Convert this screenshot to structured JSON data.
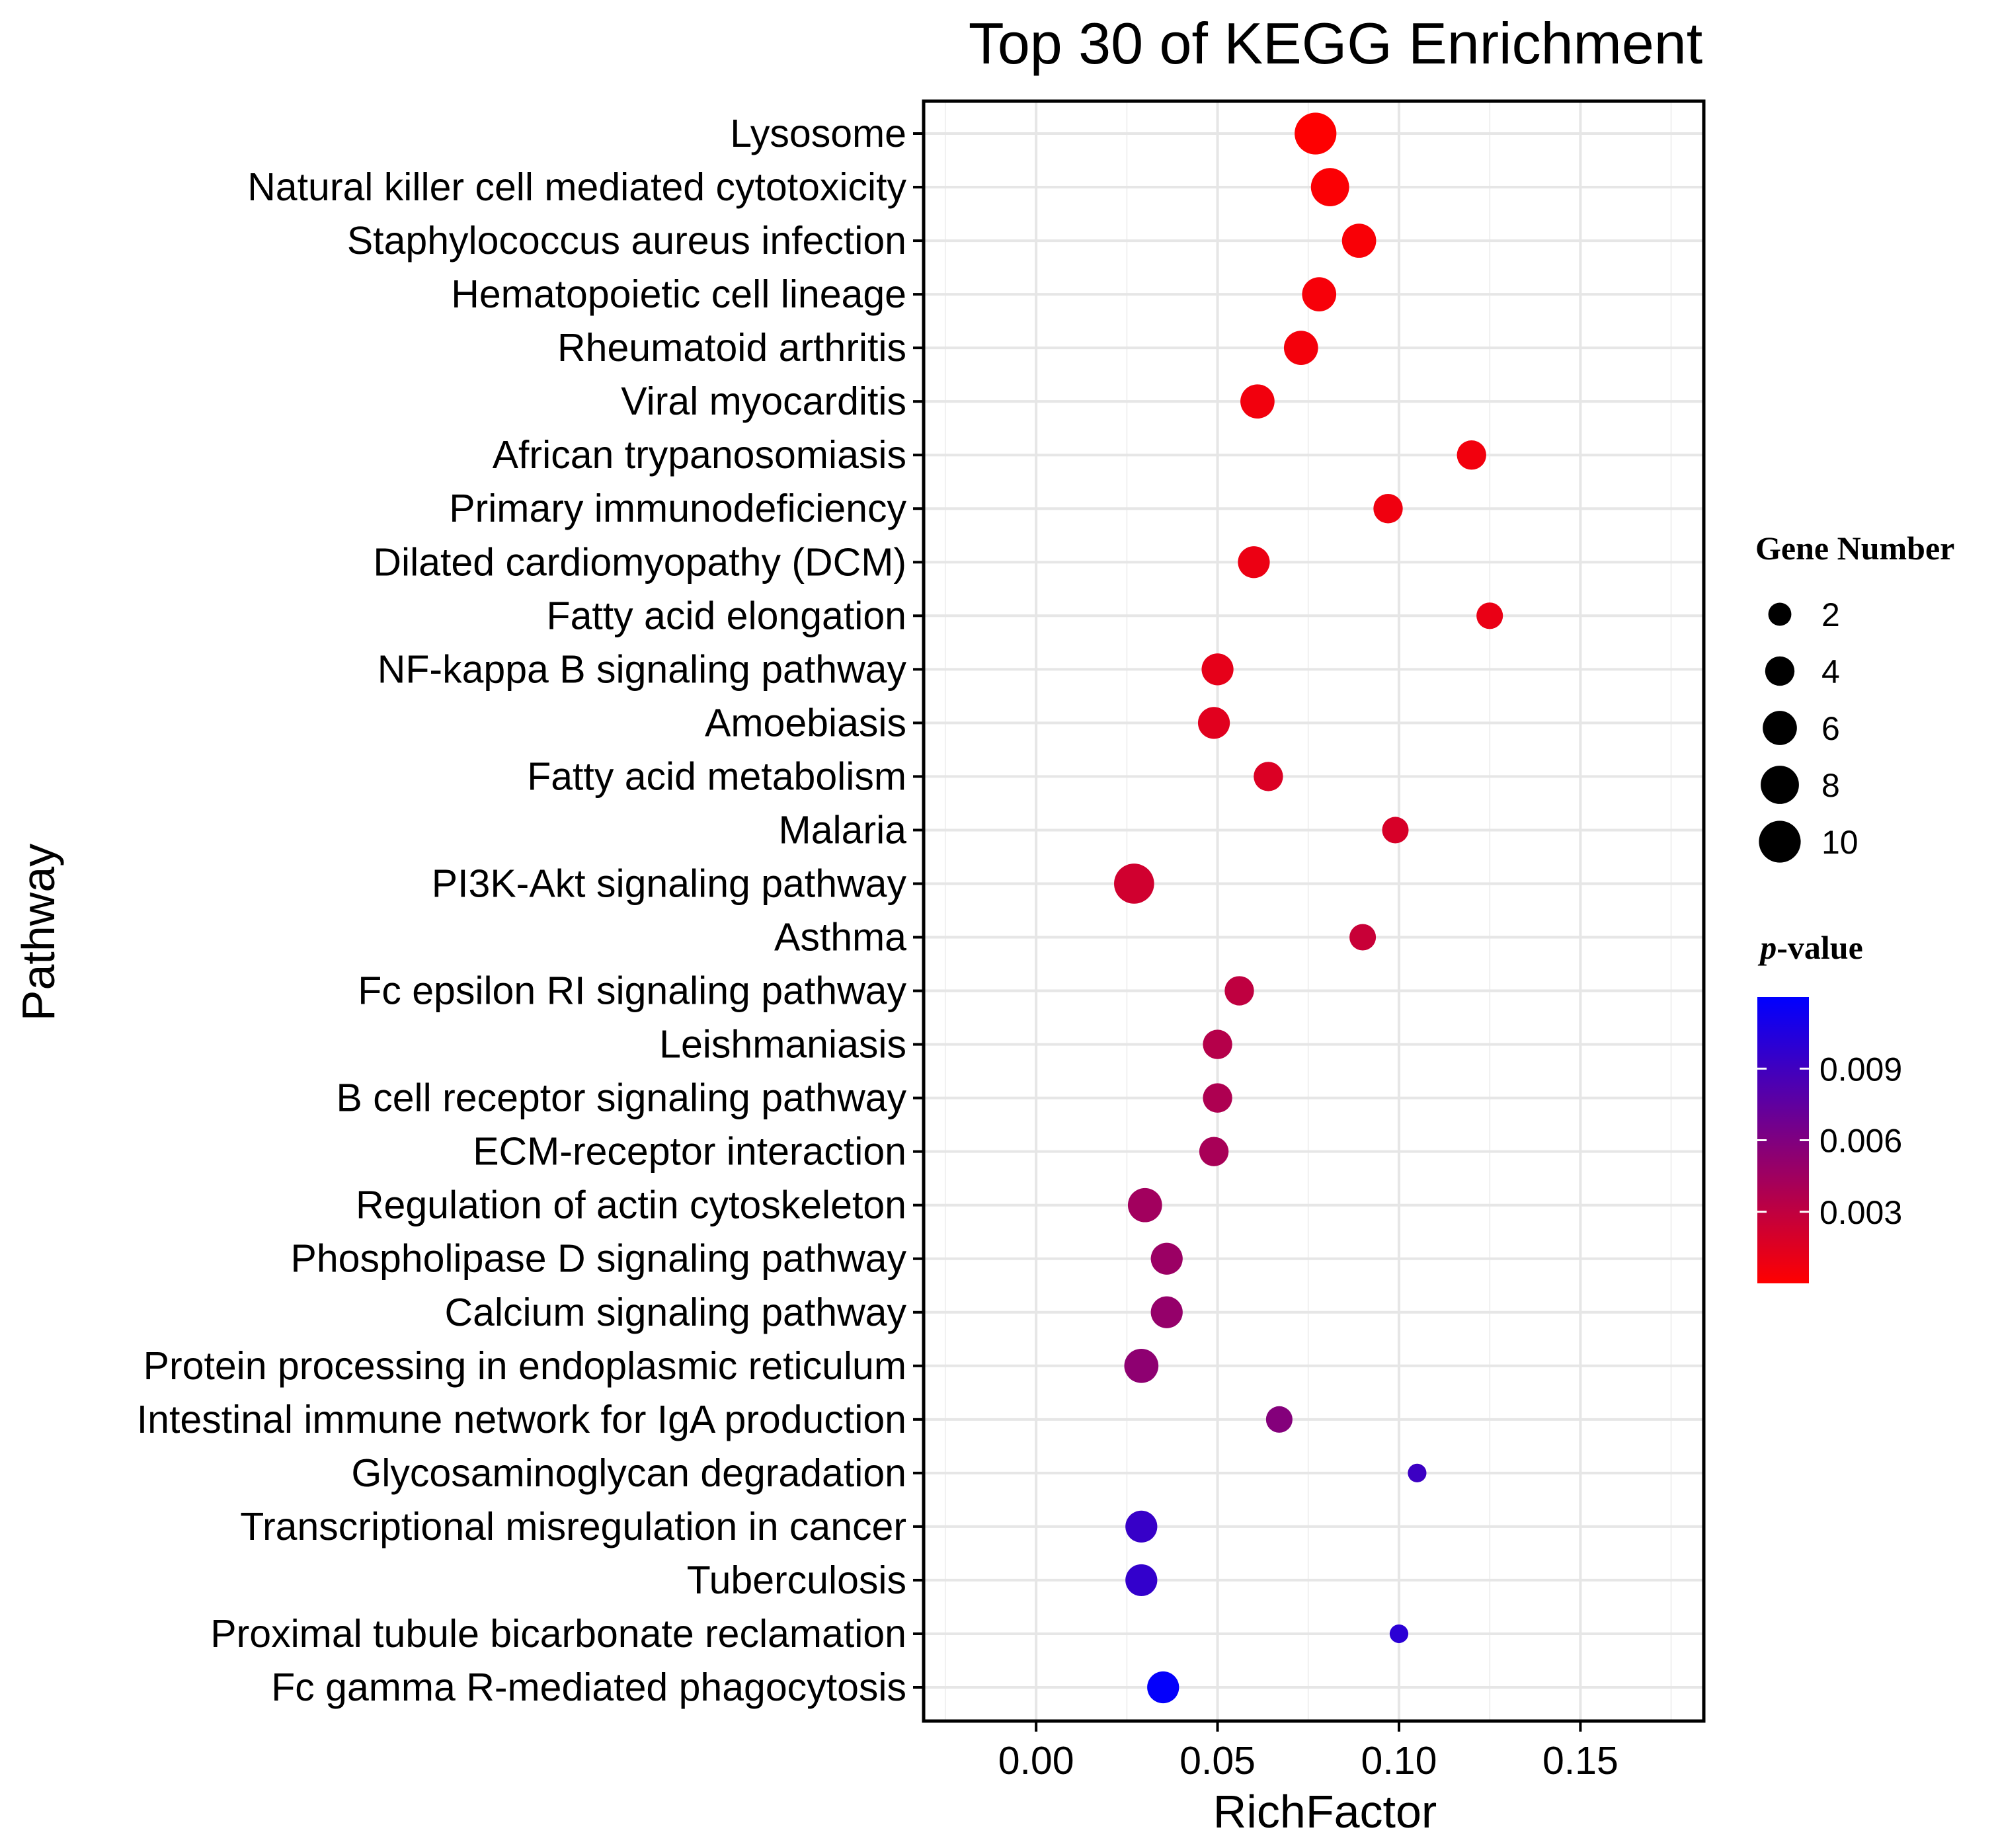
{
  "chart_data": {
    "type": "scatter",
    "title": "Top 30 of KEGG Enrichment",
    "xlabel": "RichFactor",
    "ylabel": "Pathway",
    "xlim": [
      -0.031,
      0.184
    ],
    "xticks": [
      0.0,
      0.05,
      0.1,
      0.15
    ],
    "xtick_labels": [
      "0.00",
      "0.05",
      "0.10",
      "0.15"
    ],
    "grid": true,
    "points": [
      {
        "pathway": "Lysosome",
        "rich_factor": 0.077,
        "gene_number": 10,
        "p_value": 5e-05
      },
      {
        "pathway": "Natural killer cell mediated cytotoxicity",
        "rich_factor": 0.081,
        "gene_number": 8,
        "p_value": 0.0002
      },
      {
        "pathway": "Staphylococcus aureus infection",
        "rich_factor": 0.089,
        "gene_number": 6,
        "p_value": 0.0003
      },
      {
        "pathway": "Hematopoietic cell lineage",
        "rich_factor": 0.078,
        "gene_number": 6,
        "p_value": 0.0004
      },
      {
        "pathway": "Rheumatoid arthritis",
        "rich_factor": 0.073,
        "gene_number": 6,
        "p_value": 0.0005
      },
      {
        "pathway": "Viral myocarditis",
        "rich_factor": 0.061,
        "gene_number": 6,
        "p_value": 0.0006
      },
      {
        "pathway": "African trypanosomiasis",
        "rich_factor": 0.12,
        "gene_number": 4,
        "p_value": 0.0006
      },
      {
        "pathway": "Primary immunodeficiency",
        "rich_factor": 0.097,
        "gene_number": 4,
        "p_value": 0.0007
      },
      {
        "pathway": "Dilated cardiomyopathy (DCM)",
        "rich_factor": 0.06,
        "gene_number": 5,
        "p_value": 0.0009
      },
      {
        "pathway": "Fatty acid elongation",
        "rich_factor": 0.125,
        "gene_number": 3,
        "p_value": 0.001
      },
      {
        "pathway": "NF-kappa B signaling pathway",
        "rich_factor": 0.05,
        "gene_number": 5,
        "p_value": 0.0012
      },
      {
        "pathway": "Amoebiasis",
        "rich_factor": 0.049,
        "gene_number": 5,
        "p_value": 0.0014
      },
      {
        "pathway": "Fatty acid metabolism",
        "rich_factor": 0.064,
        "gene_number": 4,
        "p_value": 0.0017
      },
      {
        "pathway": "Malaria",
        "rich_factor": 0.099,
        "gene_number": 3,
        "p_value": 0.0019
      },
      {
        "pathway": "PI3K-Akt signaling pathway",
        "rich_factor": 0.027,
        "gene_number": 9,
        "p_value": 0.0022
      },
      {
        "pathway": "Asthma",
        "rich_factor": 0.09,
        "gene_number": 3,
        "p_value": 0.0026
      },
      {
        "pathway": "Fc epsilon RI signaling pathway",
        "rich_factor": 0.056,
        "gene_number": 4,
        "p_value": 0.003
      },
      {
        "pathway": "Leishmaniasis",
        "rich_factor": 0.05,
        "gene_number": 4,
        "p_value": 0.0035
      },
      {
        "pathway": "B cell receptor signaling pathway",
        "rich_factor": 0.05,
        "gene_number": 4,
        "p_value": 0.0038
      },
      {
        "pathway": "ECM-receptor interaction",
        "rich_factor": 0.049,
        "gene_number": 4,
        "p_value": 0.0041
      },
      {
        "pathway": "Regulation of actin cytoskeleton",
        "rich_factor": 0.03,
        "gene_number": 6,
        "p_value": 0.0044
      },
      {
        "pathway": "Phospholipase D signaling pathway",
        "rich_factor": 0.036,
        "gene_number": 5,
        "p_value": 0.0047
      },
      {
        "pathway": "Calcium signaling pathway",
        "rich_factor": 0.036,
        "gene_number": 5,
        "p_value": 0.005
      },
      {
        "pathway": "Protein processing in endoplasmic reticulum",
        "rich_factor": 0.029,
        "gene_number": 6,
        "p_value": 0.0053
      },
      {
        "pathway": "Intestinal immune network for IgA production",
        "rich_factor": 0.067,
        "gene_number": 3,
        "p_value": 0.0058
      },
      {
        "pathway": "Glycosaminoglycan degradation",
        "rich_factor": 0.105,
        "gene_number": 1,
        "p_value": 0.0092
      },
      {
        "pathway": "Transcriptional misregulation in cancer",
        "rich_factor": 0.029,
        "gene_number": 5,
        "p_value": 0.0094
      },
      {
        "pathway": "Tuberculosis",
        "rich_factor": 0.029,
        "gene_number": 5,
        "p_value": 0.0096
      },
      {
        "pathway": "Proximal tubule bicarbonate reclamation",
        "rich_factor": 0.1,
        "gene_number": 1,
        "p_value": 0.01
      },
      {
        "pathway": "Fc gamma R-mediated phagocytosis",
        "rich_factor": 0.035,
        "gene_number": 5,
        "p_value": 0.0118
      }
    ],
    "size_legend": {
      "title": "Gene Number",
      "values": [
        2,
        4,
        6,
        8,
        10
      ],
      "labels": [
        "2",
        "4",
        "6",
        "8",
        "10"
      ]
    },
    "color_legend": {
      "title_italic": "p",
      "title_rest": "-value",
      "range": [
        0.0,
        0.012
      ],
      "low_color": "#ff0000",
      "high_color": "#0000ff",
      "ticks": [
        0.003,
        0.006,
        0.009
      ],
      "tick_labels": [
        "0.003",
        "0.006",
        "0.009"
      ]
    }
  }
}
